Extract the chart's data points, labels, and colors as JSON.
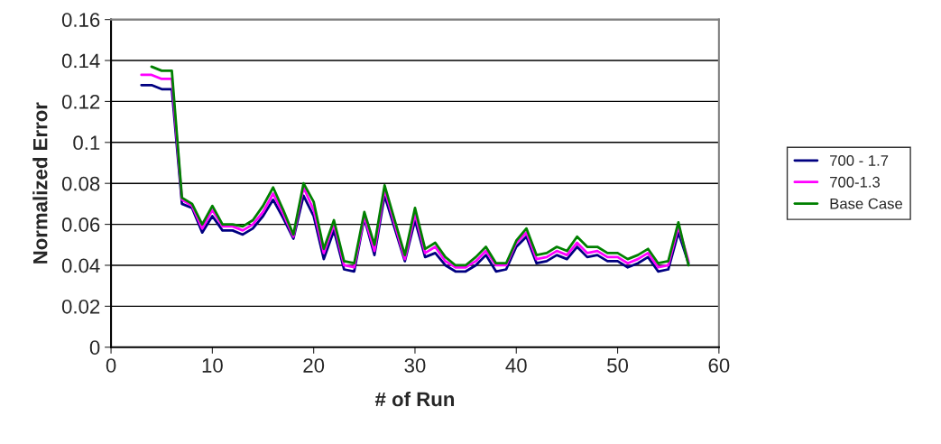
{
  "chart_data": {
    "type": "line",
    "xlabel": "# of Run",
    "ylabel": "Normalized Error",
    "xlim": [
      0,
      60
    ],
    "ylim": [
      0,
      0.16
    ],
    "xticks": [
      0,
      10,
      20,
      30,
      40,
      50,
      60
    ],
    "yticks": [
      0,
      0.02,
      0.04,
      0.06,
      0.08,
      0.1,
      0.12,
      0.14,
      0.16
    ],
    "grid": "y",
    "legend": "right",
    "marker": "none",
    "line_style": "solid",
    "series": [
      {
        "name": "700 - 1.7",
        "color": "#000080",
        "x": [
          3,
          4,
          5,
          6,
          7,
          8,
          9,
          10,
          11,
          12,
          13,
          14,
          15,
          16,
          17,
          18,
          19,
          20,
          21,
          22,
          23,
          24,
          25,
          26,
          27,
          28,
          29,
          30,
          31,
          32,
          33,
          34,
          35,
          36,
          37,
          38,
          39,
          40,
          41,
          42,
          43,
          44,
          45,
          46,
          47,
          48,
          49,
          50,
          51,
          52,
          53,
          54,
          55,
          56,
          57
        ],
        "values": [
          0.128,
          0.128,
          0.126,
          0.126,
          0.07,
          0.068,
          0.056,
          0.064,
          0.057,
          0.057,
          0.055,
          0.058,
          0.064,
          0.072,
          0.063,
          0.053,
          0.074,
          0.064,
          0.043,
          0.057,
          0.038,
          0.037,
          0.063,
          0.045,
          0.074,
          0.058,
          0.042,
          0.062,
          0.044,
          0.046,
          0.04,
          0.037,
          0.037,
          0.04,
          0.045,
          0.037,
          0.038,
          0.049,
          0.054,
          0.041,
          0.042,
          0.045,
          0.043,
          0.049,
          0.044,
          0.045,
          0.042,
          0.042,
          0.039,
          0.041,
          0.044,
          0.037,
          0.038,
          0.056,
          0.041
        ]
      },
      {
        "name": "700-1.3",
        "color": "#ff00ff",
        "x": [
          3,
          4,
          5,
          6,
          7,
          8,
          9,
          10,
          11,
          12,
          13,
          14,
          15,
          16,
          17,
          18,
          19,
          20,
          21,
          22,
          23,
          24,
          25,
          26,
          27,
          28,
          29,
          30,
          31,
          32,
          33,
          34,
          35,
          36,
          37,
          38,
          39,
          40,
          41,
          42,
          43,
          44,
          45,
          46,
          47,
          48,
          49,
          50,
          51,
          52,
          53,
          54,
          55,
          56,
          57
        ],
        "values": [
          0.133,
          0.133,
          0.131,
          0.131,
          0.072,
          0.069,
          0.058,
          0.067,
          0.059,
          0.059,
          0.057,
          0.06,
          0.066,
          0.075,
          0.065,
          0.054,
          0.078,
          0.067,
          0.046,
          0.06,
          0.04,
          0.039,
          0.064,
          0.047,
          0.077,
          0.06,
          0.043,
          0.065,
          0.046,
          0.049,
          0.042,
          0.039,
          0.039,
          0.042,
          0.047,
          0.04,
          0.04,
          0.051,
          0.056,
          0.043,
          0.044,
          0.047,
          0.045,
          0.051,
          0.046,
          0.047,
          0.044,
          0.044,
          0.041,
          0.043,
          0.046,
          0.039,
          0.04,
          0.059,
          0.042
        ]
      },
      {
        "name": "Base Case",
        "color": "#008000",
        "x": [
          4,
          5,
          6,
          7,
          8,
          9,
          10,
          11,
          12,
          13,
          14,
          15,
          16,
          17,
          18,
          19,
          20,
          21,
          22,
          23,
          24,
          25,
          26,
          27,
          28,
          29,
          30,
          31,
          32,
          33,
          34,
          35,
          36,
          37,
          38,
          39,
          40,
          41,
          42,
          43,
          44,
          45,
          46,
          47,
          48,
          49,
          50,
          51,
          52,
          53,
          54,
          55,
          56,
          57
        ],
        "values": [
          0.137,
          0.135,
          0.135,
          0.073,
          0.07,
          0.06,
          0.069,
          0.06,
          0.06,
          0.059,
          0.062,
          0.069,
          0.078,
          0.067,
          0.055,
          0.08,
          0.071,
          0.048,
          0.062,
          0.042,
          0.041,
          0.066,
          0.05,
          0.079,
          0.062,
          0.045,
          0.068,
          0.048,
          0.051,
          0.044,
          0.04,
          0.04,
          0.044,
          0.049,
          0.041,
          0.041,
          0.052,
          0.058,
          0.045,
          0.046,
          0.049,
          0.047,
          0.054,
          0.049,
          0.049,
          0.046,
          0.046,
          0.043,
          0.045,
          0.048,
          0.041,
          0.042,
          0.061,
          0.04
        ]
      }
    ]
  }
}
